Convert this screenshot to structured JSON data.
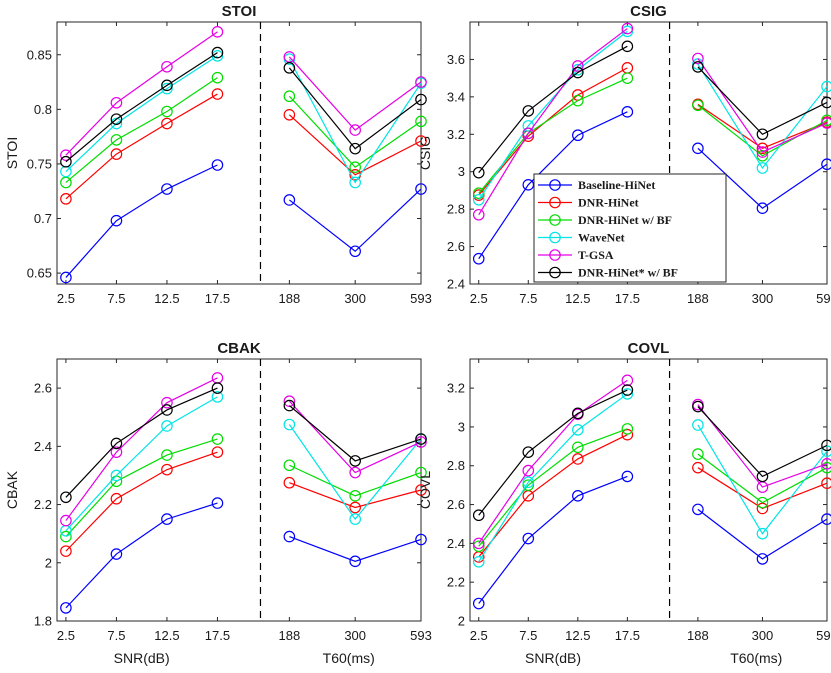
{
  "chart_data": {
    "type": "line",
    "snr_ticks": [
      "2.5",
      "7.5",
      "12.5",
      "17.5"
    ],
    "t60_ticks": [
      "188",
      "300",
      "593"
    ],
    "xlabel_left": "SNR(dB)",
    "xlabel_right": "T60(ms)",
    "legend": {
      "placement": "top-right-panel",
      "entries": [
        {
          "name": "Baseline-HiNet",
          "color": "#0000ff"
        },
        {
          "name": "DNR-HiNet",
          "color": "#ff0000"
        },
        {
          "name": "DNR-HiNet w/ BF",
          "color": "#00dd00"
        },
        {
          "name": "WaveNet",
          "color": "#00e5e5"
        },
        {
          "name": "T-GSA",
          "color": "#e600e6"
        },
        {
          "name": "DNR-HiNet* w/ BF",
          "color": "#000000"
        }
      ]
    },
    "panels": [
      {
        "title": "STOI",
        "ylabel": "STOI",
        "ylim": [
          0.64,
          0.88
        ],
        "yticks": [
          0.65,
          0.7,
          0.75,
          0.8,
          0.85
        ],
        "ytick_labels": [
          "0.65",
          "0.7",
          "0.75",
          "0.8",
          "0.85"
        ],
        "series": [
          {
            "name": "Baseline-HiNet",
            "snr": [
              0.646,
              0.698,
              0.727,
              0.749
            ],
            "t60": [
              0.717,
              0.67,
              0.727
            ]
          },
          {
            "name": "DNR-HiNet",
            "snr": [
              0.718,
              0.759,
              0.787,
              0.814
            ],
            "t60": [
              0.795,
              0.74,
              0.771
            ]
          },
          {
            "name": "DNR-HiNet w/ BF",
            "snr": [
              0.733,
              0.772,
              0.798,
              0.829
            ],
            "t60": [
              0.812,
              0.747,
              0.789
            ]
          },
          {
            "name": "WaveNet",
            "snr": [
              0.743,
              0.787,
              0.819,
              0.849
            ],
            "t60": [
              0.846,
              0.733,
              0.824
            ]
          },
          {
            "name": "T-GSA",
            "snr": [
              0.758,
              0.806,
              0.839,
              0.871
            ],
            "t60": [
              0.848,
              0.781,
              0.825
            ]
          },
          {
            "name": "DNR-HiNet* w/ BF",
            "snr": [
              0.752,
              0.791,
              0.822,
              0.852
            ],
            "t60": [
              0.838,
              0.764,
              0.809
            ]
          }
        ]
      },
      {
        "title": "CSIG",
        "ylabel": "CSIG",
        "ylim": [
          2.4,
          3.8
        ],
        "yticks": [
          2.4,
          2.6,
          2.8,
          3.0,
          3.2,
          3.4,
          3.6
        ],
        "ytick_labels": [
          "2.4",
          "2.6",
          "2.8",
          "3",
          "3.2",
          "3.4",
          "3.6"
        ],
        "series": [
          {
            "name": "Baseline-HiNet",
            "snr": [
              2.535,
              2.93,
              3.195,
              3.32
            ],
            "t60": [
              3.125,
              2.805,
              3.04
            ]
          },
          {
            "name": "DNR-HiNet",
            "snr": [
              2.875,
              3.19,
              3.41,
              3.555
            ],
            "t60": [
              3.36,
              3.125,
              3.265
            ]
          },
          {
            "name": "DNR-HiNet w/ BF",
            "snr": [
              2.885,
              3.205,
              3.38,
              3.5
            ],
            "t60": [
              3.355,
              3.085,
              3.275
            ]
          },
          {
            "name": "WaveNet",
            "snr": [
              2.85,
              3.245,
              3.545,
              3.75
            ],
            "t60": [
              3.575,
              3.02,
              3.455
            ]
          },
          {
            "name": "T-GSA",
            "snr": [
              2.77,
              3.205,
              3.565,
              3.765
            ],
            "t60": [
              3.605,
              3.105,
              3.26
            ]
          },
          {
            "name": "DNR-HiNet* w/ BF",
            "snr": [
              2.995,
              3.325,
              3.53,
              3.67
            ],
            "t60": [
              3.56,
              3.2,
              3.37
            ]
          }
        ]
      },
      {
        "title": "CBAK",
        "ylabel": "CBAK",
        "ylim": [
          1.8,
          2.7
        ],
        "yticks": [
          1.8,
          2.0,
          2.2,
          2.4,
          2.6
        ],
        "ytick_labels": [
          "1.8",
          "2",
          "2.2",
          "2.4",
          "2.6"
        ],
        "series": [
          {
            "name": "Baseline-HiNet",
            "snr": [
              1.845,
              2.03,
              2.15,
              2.205
            ],
            "t60": [
              2.09,
              2.005,
              2.08
            ]
          },
          {
            "name": "DNR-HiNet",
            "snr": [
              2.04,
              2.22,
              2.32,
              2.38
            ],
            "t60": [
              2.275,
              2.19,
              2.25
            ]
          },
          {
            "name": "DNR-HiNet w/ BF",
            "snr": [
              2.09,
              2.28,
              2.37,
              2.425
            ],
            "t60": [
              2.335,
              2.23,
              2.31
            ]
          },
          {
            "name": "WaveNet",
            "snr": [
              2.11,
              2.3,
              2.47,
              2.57
            ],
            "t60": [
              2.475,
              2.15,
              2.425
            ]
          },
          {
            "name": "T-GSA",
            "snr": [
              2.145,
              2.38,
              2.55,
              2.635
            ],
            "t60": [
              2.555,
              2.31,
              2.415
            ]
          },
          {
            "name": "DNR-HiNet* w/ BF",
            "snr": [
              2.225,
              2.41,
              2.525,
              2.6
            ],
            "t60": [
              2.54,
              2.35,
              2.425
            ]
          }
        ]
      },
      {
        "title": "COVL",
        "ylabel": "COVL",
        "ylim": [
          2.0,
          3.35
        ],
        "yticks": [
          2.0,
          2.2,
          2.4,
          2.6,
          2.8,
          3.0,
          3.2
        ],
        "ytick_labels": [
          "2",
          "2.2",
          "2.4",
          "2.6",
          "2.8",
          "3",
          "3.2"
        ],
        "series": [
          {
            "name": "Baseline-HiNet",
            "snr": [
              2.09,
              2.425,
              2.645,
              2.745
            ],
            "t60": [
              2.575,
              2.32,
              2.525
            ]
          },
          {
            "name": "DNR-HiNet",
            "snr": [
              2.33,
              2.645,
              2.835,
              2.96
            ],
            "t60": [
              2.79,
              2.58,
              2.71
            ]
          },
          {
            "name": "DNR-HiNet w/ BF",
            "snr": [
              2.385,
              2.7,
              2.895,
              2.99
            ],
            "t60": [
              2.86,
              2.61,
              2.79
            ]
          },
          {
            "name": "WaveNet",
            "snr": [
              2.305,
              2.715,
              2.985,
              3.17
            ],
            "t60": [
              3.01,
              2.45,
              2.875
            ]
          },
          {
            "name": "T-GSA",
            "snr": [
              2.4,
              2.775,
              3.065,
              3.24
            ],
            "t60": [
              3.115,
              2.69,
              2.81
            ]
          },
          {
            "name": "DNR-HiNet* w/ BF",
            "snr": [
              2.545,
              2.87,
              3.07,
              3.19
            ],
            "t60": [
              3.105,
              2.745,
              2.905
            ]
          }
        ]
      }
    ]
  }
}
